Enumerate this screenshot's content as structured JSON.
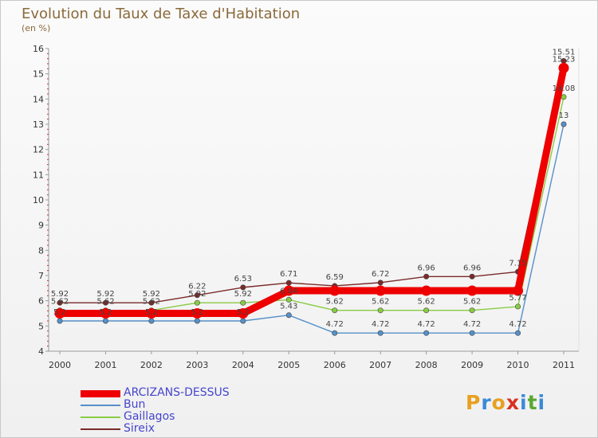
{
  "title": "Evolution du Taux de Taxe d'Habitation",
  "unit": "(en %)",
  "logo": {
    "text": "Proxiti",
    "letters": [
      {
        "ch": "P",
        "color": "#e8a020"
      },
      {
        "ch": "r",
        "color": "#3a8ad8"
      },
      {
        "ch": "o",
        "color": "#e8a020"
      },
      {
        "ch": "x",
        "color": "#d83020"
      },
      {
        "ch": "i",
        "color": "#3a8ad8"
      },
      {
        "ch": "t",
        "color": "#5aa830"
      },
      {
        "ch": "i",
        "color": "#3a8ad8"
      }
    ]
  },
  "chart_data": {
    "type": "line",
    "title": "Evolution du Taux de Taxe d'Habitation",
    "ylabel": "(en %)",
    "xlabel": "",
    "x": [
      "2000",
      "2001",
      "2002",
      "2003",
      "2004",
      "2005",
      "2006",
      "2007",
      "2008",
      "2009",
      "2010",
      "2011"
    ],
    "ylim": [
      4,
      16
    ],
    "yticks": [
      "4",
      "5",
      "6",
      "7",
      "8",
      "9",
      "10",
      "11",
      "12",
      "13",
      "14",
      "15",
      "16"
    ],
    "grid": false,
    "legend": "bottom-left",
    "series": [
      {
        "name": "ARCIZANS-DESSUS",
        "color": "#ee0000",
        "values": [
          5.5,
          5.5,
          5.5,
          5.5,
          5.5,
          6.4,
          6.4,
          6.4,
          6.4,
          6.4,
          6.4,
          15.23
        ],
        "labels": [
          "",
          "",
          "",
          "",
          "",
          "",
          "",
          "",
          "",
          "",
          "",
          "15.23"
        ]
      },
      {
        "name": "Bun",
        "color": "#5590c8",
        "values": [
          5.2,
          5.2,
          5.2,
          5.2,
          5.2,
          5.43,
          4.72,
          4.72,
          4.72,
          4.72,
          4.72,
          13
        ],
        "labels": [
          "5.2",
          "5.2",
          "5.2",
          "5.2",
          "5.2",
          "5.43",
          "4.72",
          "4.72",
          "4.72",
          "4.72",
          "4.72",
          "13"
        ]
      },
      {
        "name": "Gaillagos",
        "color": "#88cc44",
        "values": [
          5.62,
          5.62,
          5.62,
          5.92,
          5.92,
          6.04,
          5.62,
          5.62,
          5.62,
          5.62,
          5.77,
          14.08
        ],
        "labels": [
          "5.62",
          "5.62",
          "5.62",
          "5.92",
          "5.92",
          "6.04",
          "5.62",
          "5.62",
          "5.62",
          "5.62",
          "5.77",
          "14.08"
        ]
      },
      {
        "name": "Sireix",
        "color": "#7a2a2a",
        "values": [
          5.92,
          5.92,
          5.92,
          6.22,
          6.53,
          6.71,
          6.59,
          6.72,
          6.96,
          6.96,
          7.15,
          15.51
        ],
        "labels": [
          "5.92",
          "5.92",
          "5.92",
          "6.22",
          "6.53",
          "6.71",
          "6.59",
          "6.72",
          "6.96",
          "6.96",
          "7.15",
          "15.51"
        ]
      }
    ]
  }
}
